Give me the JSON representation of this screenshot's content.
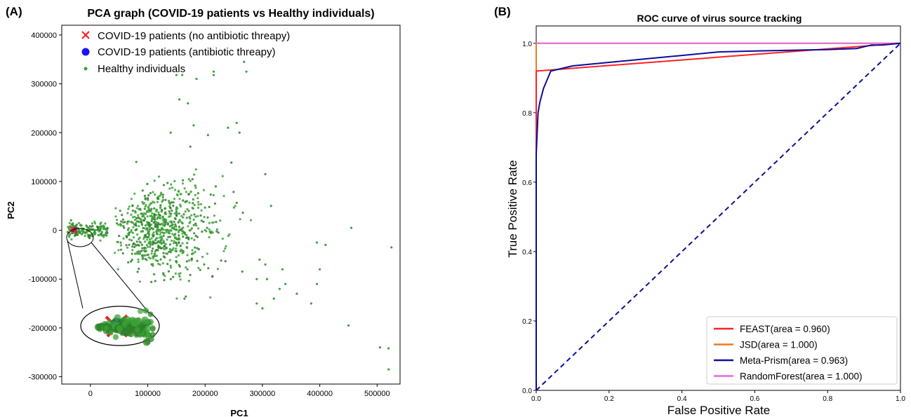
{
  "panels": {
    "a_label": "(A)",
    "b_label": "(B)"
  },
  "colors": {
    "healthy": "#3aa336",
    "healthy_dark": "#2f7f2a",
    "covid_no_ab": "#ff1a1a",
    "covid_ab": "#1515ff",
    "feast": "#ff2222",
    "jsd": "#ee7a1f",
    "metaprism": "#0d0d9a",
    "randomforest": "#e36be3",
    "diag": "#0d0d9a"
  },
  "chart_data": [
    {
      "type": "scatter",
      "title": "PCA graph (COVID-19 patients vs Healthy individuals)",
      "xlabel": "PC1",
      "ylabel": "PC2",
      "xlim": [
        -50000,
        540000
      ],
      "ylim": [
        -315000,
        420000
      ],
      "xticks": [
        "0",
        "100000",
        "200000",
        "300000",
        "400000",
        "500000"
      ],
      "yticks": [
        "-300000",
        "-200000",
        "-100000",
        "0",
        "100000",
        "200000",
        "300000",
        "400000"
      ],
      "legend_position": "top-left",
      "legend": [
        {
          "label": "COVID-19 patients (no antibiotic threapy)",
          "marker": "x",
          "color": "#ff1a1a"
        },
        {
          "label": "COVID-19 patients (antibiotic threapy)",
          "marker": "circle",
          "color": "#1515ff"
        },
        {
          "label": "Healthy individuals",
          "marker": "dot",
          "color": "#3aa336"
        }
      ],
      "series": [
        {
          "name": "COVID-19 patients (no antibiotic threapy)",
          "x": [
            -30000,
            -27000,
            -32000
          ],
          "y": [
            1000,
            -2000,
            3000
          ]
        },
        {
          "name": "COVID-19 patients (antibiotic threapy)",
          "x": [
            -29000,
            -28000
          ],
          "y": [
            0,
            2000
          ]
        },
        {
          "name": "Healthy individuals",
          "cluster": {
            "x_range": [
              -40000,
              290000
            ],
            "y_range": [
              -150000,
              210000
            ],
            "count": 900
          },
          "x": [
            150000,
            160000,
            185000,
            215000,
            215000,
            268000,
            272000,
            155000,
            170000,
            140000,
            180000,
            205000,
            240000,
            260000,
            305000,
            315000,
            330000,
            290000,
            300000,
            320000,
            395000,
            400000,
            410000,
            395000,
            385000,
            450000,
            455000,
            505000,
            520000,
            520000,
            525000,
            290000,
            295000,
            305000,
            335000,
            340000,
            360000,
            308000,
            255000,
            80000
          ],
          "y": [
            318000,
            318000,
            310000,
            325000,
            318000,
            345000,
            325000,
            268000,
            260000,
            200000,
            215000,
            195000,
            210000,
            200000,
            115000,
            50000,
            -120000,
            -150000,
            -160000,
            -140000,
            -25000,
            -80000,
            -30000,
            -110000,
            -150000,
            -195000,
            5000,
            -240000,
            -242000,
            -285000,
            -35000,
            -100000,
            -60000,
            -70000,
            -80000,
            -110000,
            -130000,
            -100000,
            220000,
            140000
          ]
        }
      ]
    },
    {
      "type": "line",
      "title": "ROC curve of virus source tracking",
      "xlabel": "False Positive Rate",
      "ylabel": "True Positive Rate",
      "xlim": [
        0.0,
        1.0
      ],
      "ylim": [
        0.0,
        1.05
      ],
      "xticks": [
        "0.0",
        "0.2",
        "0.4",
        "0.6",
        "0.8",
        "1.0"
      ],
      "yticks": [
        "0.0",
        "0.2",
        "0.4",
        "0.6",
        "0.8",
        "1.0"
      ],
      "legend_position": "lower-right",
      "series": [
        {
          "name": "FEAST(area = 0.960)",
          "x": [
            0.0,
            0.0,
            1.0
          ],
          "y": [
            0.0,
            0.92,
            1.0
          ]
        },
        {
          "name": "JSD(area = 1.000)",
          "x": [
            0.0,
            0.0,
            1.0
          ],
          "y": [
            0.0,
            1.0,
            1.0
          ]
        },
        {
          "name": "Meta-Prism(area = 0.963)",
          "x": [
            0.0,
            0.0,
            0.005,
            0.01,
            0.02,
            0.04,
            0.1,
            0.2,
            0.3,
            0.4,
            0.5,
            0.6,
            0.7,
            0.8,
            0.88,
            0.92,
            0.95,
            1.0
          ],
          "y": [
            0.0,
            0.68,
            0.8,
            0.83,
            0.87,
            0.92,
            0.935,
            0.945,
            0.955,
            0.965,
            0.975,
            0.978,
            0.98,
            0.982,
            0.985,
            0.995,
            0.995,
            1.0
          ]
        },
        {
          "name": "RandomForest(area = 1.000)",
          "x": [
            0.0,
            1.0
          ],
          "y": [
            1.0,
            1.0
          ]
        },
        {
          "name": "",
          "x": [
            0.0,
            1.0
          ],
          "y": [
            0.0,
            1.0
          ],
          "style": "dashed"
        }
      ]
    }
  ]
}
